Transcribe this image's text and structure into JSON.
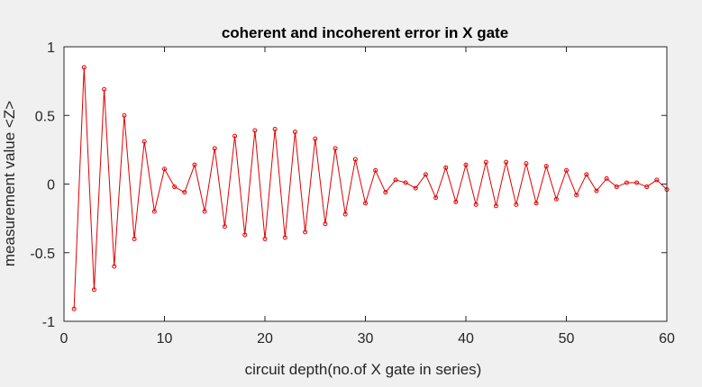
{
  "chart_data": {
    "type": "line",
    "title": "coherent and incoherent error in X gate",
    "xlabel": "circuit depth(no.of X gate in series)",
    "ylabel": "measurement value <Z>",
    "xlim": [
      0,
      60
    ],
    "ylim": [
      -1,
      1
    ],
    "xticks": [
      0,
      10,
      20,
      30,
      40,
      50,
      60
    ],
    "xtick_labels": [
      "0",
      "10",
      "20",
      "30",
      "40",
      "50",
      "60"
    ],
    "yticks": [
      -1,
      -0.5,
      0,
      0.5,
      1
    ],
    "ytick_labels": [
      "-1",
      "-0.5",
      "0",
      "0.5",
      "1"
    ],
    "grid": false,
    "legend": "none",
    "marker": "circle",
    "series": [
      {
        "color": "#e00000",
        "x": [
          1,
          2,
          3,
          4,
          5,
          6,
          7,
          8,
          9,
          10,
          11,
          12,
          13,
          14,
          15,
          16,
          17,
          18,
          19,
          20,
          21,
          22,
          23,
          24,
          25,
          26,
          27,
          28,
          29,
          30,
          31,
          32,
          33,
          34,
          35,
          36,
          37,
          38,
          39,
          40,
          41,
          42,
          43,
          44,
          45,
          46,
          47,
          48,
          49,
          50,
          51,
          52,
          53,
          54,
          55,
          56,
          57,
          58,
          59,
          60
        ],
        "y": [
          -0.91,
          0.85,
          -0.77,
          0.69,
          -0.6,
          0.5,
          -0.4,
          0.31,
          -0.2,
          0.11,
          -0.02,
          -0.06,
          0.14,
          -0.2,
          0.26,
          -0.31,
          0.35,
          -0.37,
          0.39,
          -0.4,
          0.4,
          -0.39,
          0.38,
          -0.35,
          0.33,
          -0.29,
          0.26,
          -0.22,
          0.18,
          -0.14,
          0.1,
          -0.06,
          0.03,
          0.01,
          -0.03,
          0.07,
          -0.1,
          0.12,
          -0.13,
          0.14,
          -0.15,
          0.16,
          -0.16,
          0.16,
          -0.15,
          0.15,
          -0.14,
          0.13,
          -0.11,
          0.1,
          -0.08,
          0.07,
          -0.05,
          0.04,
          -0.02,
          0.01,
          0.01,
          -0.02,
          0.03,
          -0.04
        ]
      }
    ]
  }
}
